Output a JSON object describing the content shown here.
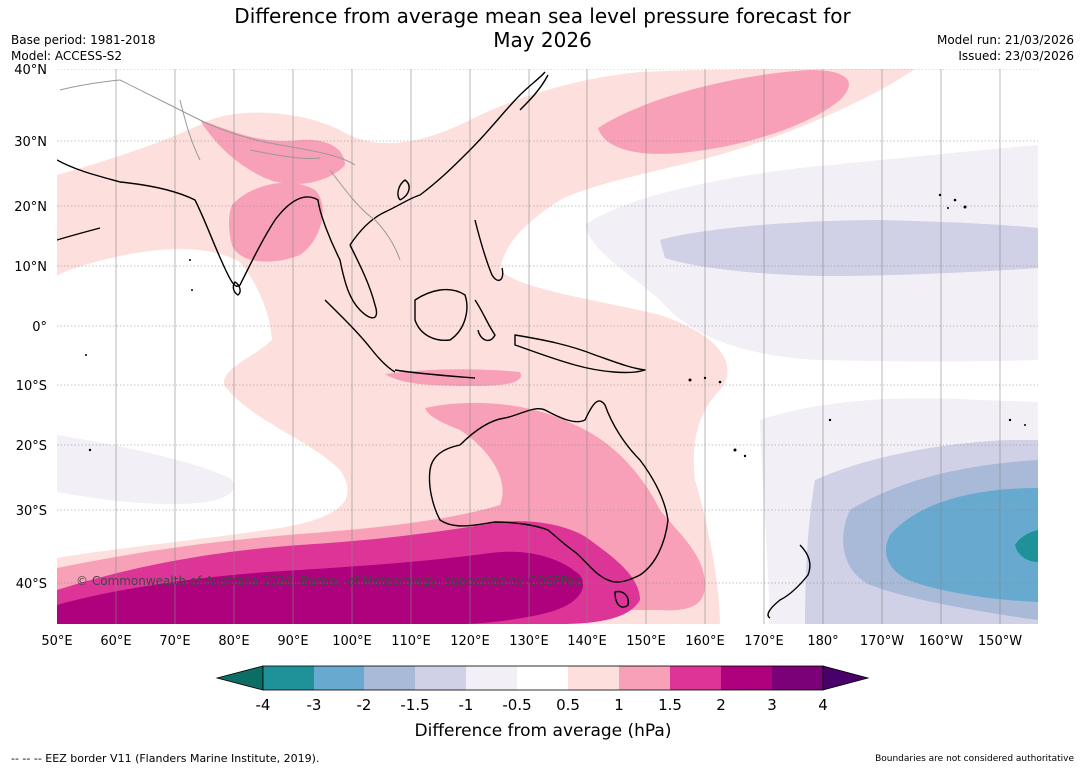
{
  "header": {
    "title_line1": "Difference from average mean sea level pressure forecast for",
    "title_line2": "May 2026",
    "base_period": "Base period: 1981-2018",
    "model": "Model: ACCESS-S2",
    "model_run": "Model run: 21/03/2026",
    "issued": "Issued: 23/03/2026"
  },
  "map": {
    "lat_labels": [
      "40°N",
      "30°N",
      "20°N",
      "10°N",
      "0°",
      "10°S",
      "20°S",
      "30°S",
      "40°S"
    ],
    "lon_labels": [
      "50°E",
      "60°E",
      "70°E",
      "80°E",
      "90°E",
      "100°E",
      "110°E",
      "120°E",
      "130°E",
      "140°E",
      "150°E",
      "160°E",
      "170°E",
      "180°",
      "170°W",
      "160°W",
      "150°W"
    ],
    "copyright": "© Commonwealth of Australia 2026, Bureau of Meteorology, supported by COSPPac"
  },
  "colorbar": {
    "ticks": [
      "-4",
      "-3",
      "-2",
      "-1.5",
      "-1",
      "-0.5",
      "0.5",
      "1",
      "1.5",
      "2",
      "3",
      "4"
    ],
    "title": "Difference from average (hPa)",
    "colors": {
      "lt_m4": "#0b6d63",
      "m4_m3": "#1f9199",
      "m3_m2": "#67a9cf",
      "m2_m15": "#a8bad8",
      "m15_m1": "#d0d1e6",
      "m1_m05": "#f2eff6",
      "m05_05": "#ffffff",
      "p05_1": "#fde0dd",
      "p1_15": "#f8a0b8",
      "p15_2": "#dd3497",
      "p2_3": "#ae017e",
      "p3_4": "#7a0177",
      "gt_4": "#49006a"
    }
  },
  "footer": {
    "eez": "--  --  -- EEZ border V11 (Flanders Marine Institute, 2019).",
    "disclaimer": "Boundaries are not considered authoritative"
  }
}
